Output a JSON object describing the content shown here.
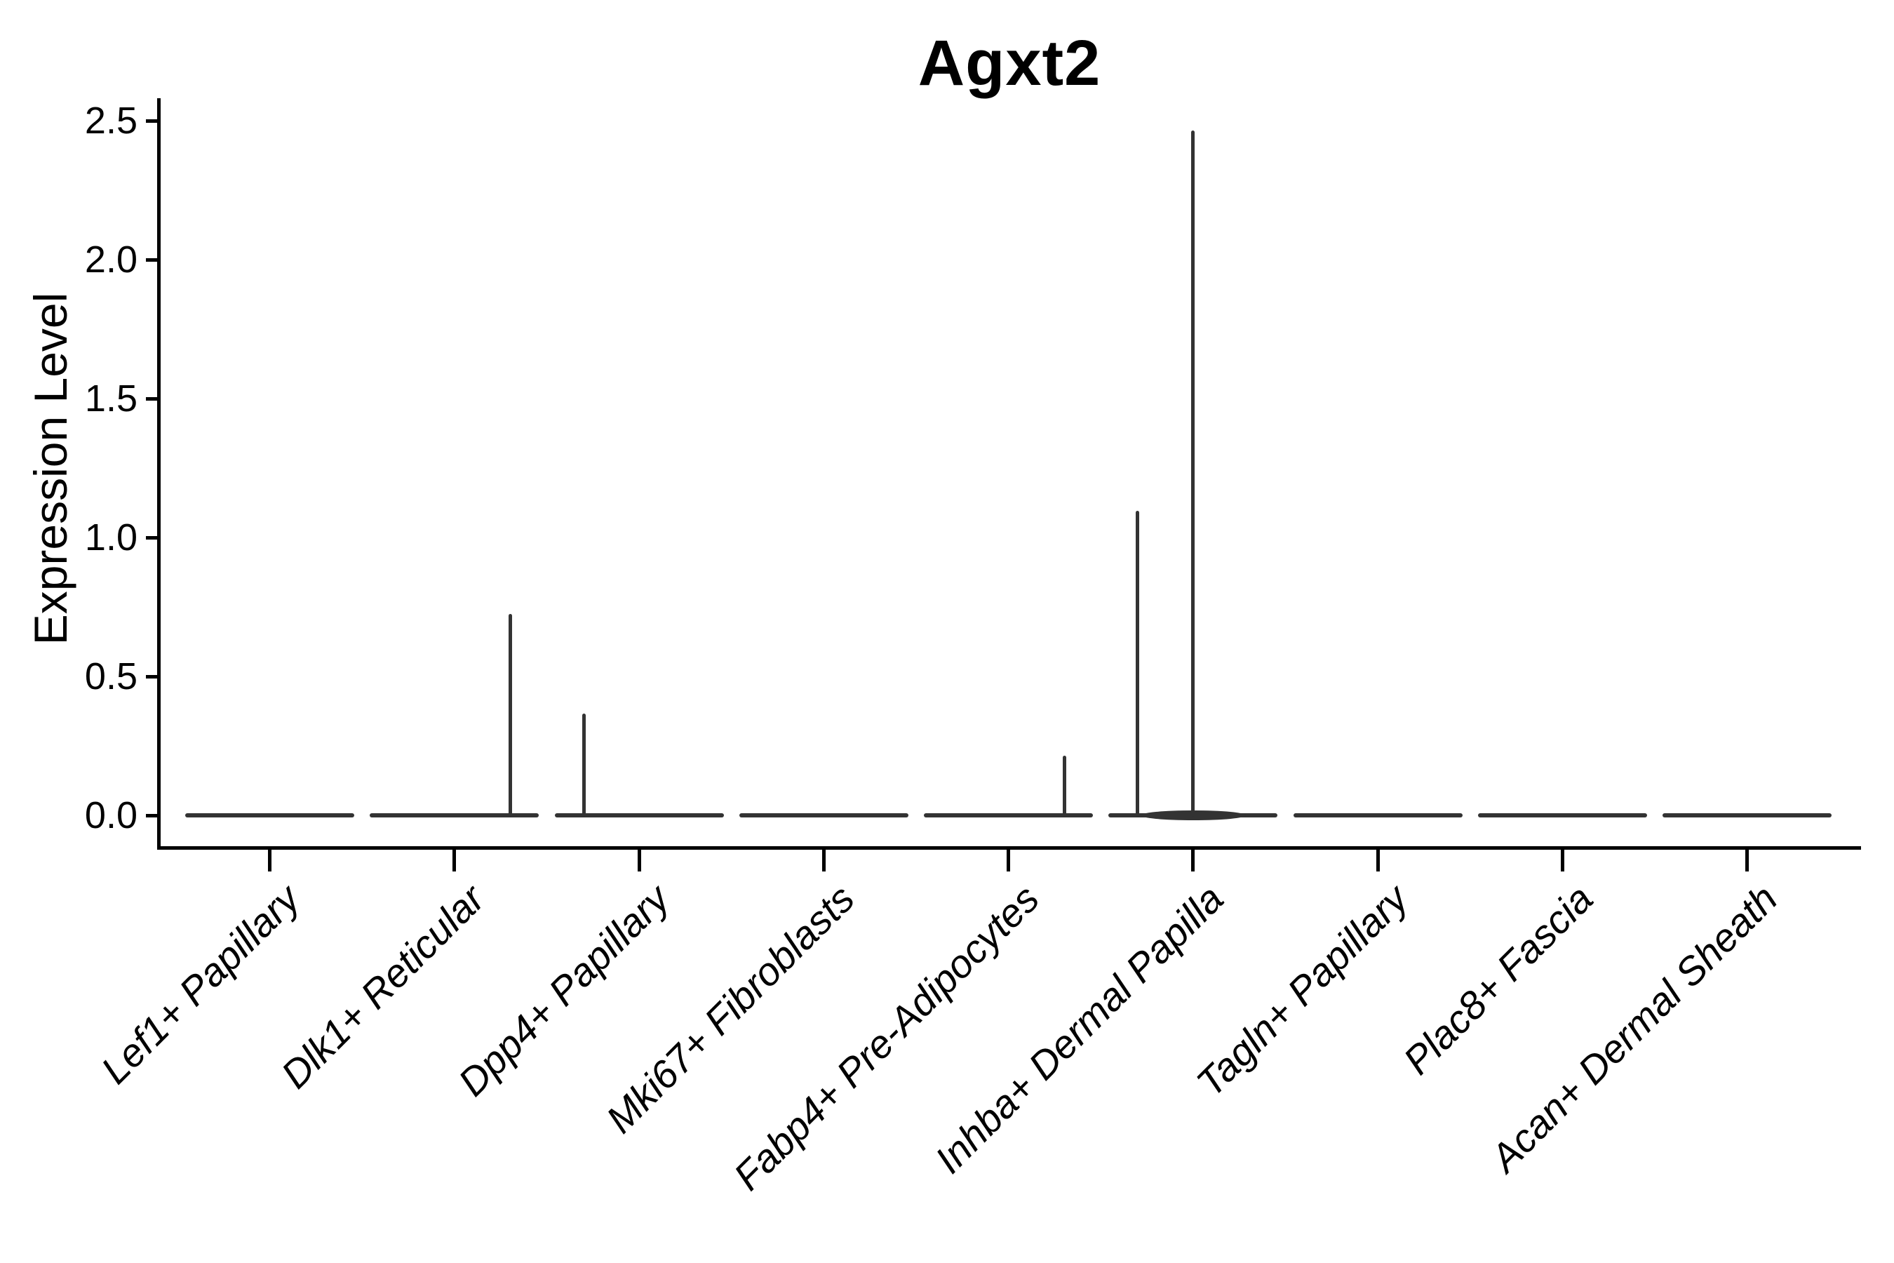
{
  "title": "Agxt2",
  "axes": {
    "ylabel": "Expression Level",
    "y_tick_labels": [
      "0.0",
      "0.5",
      "1.0",
      "1.5",
      "2.0",
      "2.5"
    ]
  },
  "chart_data": {
    "type": "violin",
    "title": "Agxt2",
    "xlabel": "",
    "ylabel": "Expression Level",
    "ylim": [
      -0.12,
      2.59
    ],
    "y_ticks": [
      0.0,
      0.5,
      1.0,
      1.5,
      2.0,
      2.5
    ],
    "grid": false,
    "legend_position": "none",
    "x_tick_rotation": 45,
    "x_tick_style": "italic",
    "violin_color": "#333333",
    "axis_color": "#000000",
    "categories": [
      "Lef1+ Papillary",
      "Dlk1+ Reticular",
      "Dpp4+ Papillary",
      "Mki67+ Fibroblasts",
      "Fabp4+ Pre-Adipocytes",
      "Inhba+ Dermal Papilla",
      "Tagln+ Papillary",
      "Plac8+ Fascia",
      "Acan+ Dermal Sheath"
    ],
    "violins": [
      {
        "label": "Lef1+ Papillary",
        "baseline_value": 0,
        "bump_at_zero": false,
        "spikes": []
      },
      {
        "label": "Dlk1+ Reticular",
        "baseline_value": 0,
        "bump_at_zero": false,
        "spikes": [
          {
            "dx": 0.66,
            "value": 0.72
          }
        ]
      },
      {
        "label": "Dpp4+ Papillary",
        "baseline_value": 0,
        "bump_at_zero": false,
        "spikes": [
          {
            "dx": -0.65,
            "value": 0.36
          }
        ]
      },
      {
        "label": "Mki67+ Fibroblasts",
        "baseline_value": 0,
        "bump_at_zero": false,
        "spikes": []
      },
      {
        "label": "Fabp4+ Pre-Adipocytes",
        "baseline_value": 0,
        "bump_at_zero": false,
        "spikes": [
          {
            "dx": 0.66,
            "value": 0.21
          }
        ]
      },
      {
        "label": "Inhba+ Dermal Papilla",
        "baseline_value": 0,
        "bump_at_zero": true,
        "spikes": [
          {
            "dx": -0.66,
            "value": 1.09
          },
          {
            "dx": 0.0,
            "value": 2.46
          }
        ]
      },
      {
        "label": "Tagln+ Papillary",
        "baseline_value": 0,
        "bump_at_zero": false,
        "spikes": []
      },
      {
        "label": "Plac8+ Fascia",
        "baseline_value": 0,
        "bump_at_zero": false,
        "spikes": []
      },
      {
        "label": "Acan+ Dermal Sheath",
        "baseline_value": 0,
        "bump_at_zero": false,
        "spikes": []
      }
    ]
  }
}
